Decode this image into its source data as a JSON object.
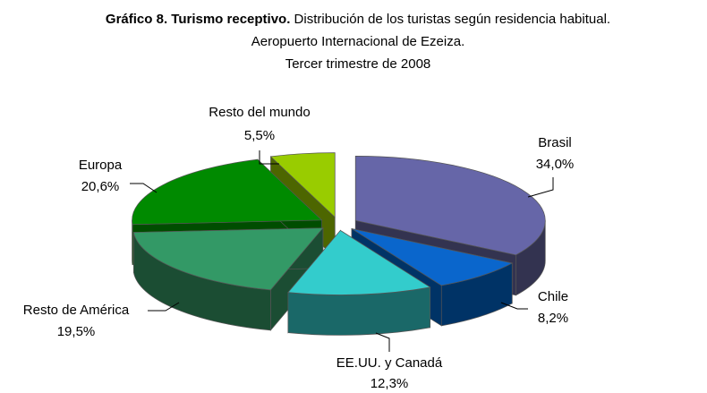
{
  "chart_data": {
    "type": "pie",
    "title_label": "Gráfico 8. Turismo receptivo.",
    "title": "Distribución de los turistas según residencia habitual.",
    "subtitle": [
      "Aeropuerto Internacional de Ezeiza.",
      "Tercer trimestre de 2008"
    ],
    "categories": [
      "Brasil",
      "Chile",
      "EE.UU. y Canadá",
      "Resto de América",
      "Europa",
      "Resto del mundo"
    ],
    "values": [
      34.0,
      8.2,
      12.3,
      19.5,
      20.6,
      5.5
    ],
    "value_labels": [
      "34,0%",
      "8,2%",
      "12,3%",
      "19,5%",
      "20,6%",
      "5,5%"
    ],
    "colors": [
      "#6666a8",
      "#0a66cc",
      "#33cccc",
      "#339966",
      "#008a00",
      "#99cc00"
    ],
    "side_colors": [
      "#333350",
      "#003366",
      "#1a6868",
      "#1b4d33",
      "#004d00",
      "#4d6600"
    ]
  }
}
